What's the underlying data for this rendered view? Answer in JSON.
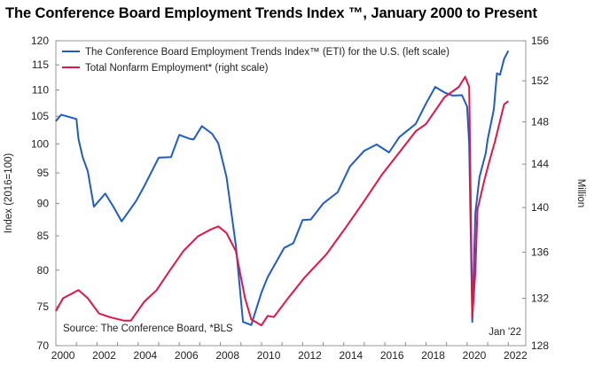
{
  "chart_data": {
    "type": "line",
    "title": "The Conference Board Employment Trends Index ™, January 2000 to Present",
    "ylabel_left": "Index (2016=100)",
    "ylabel_right": "Million",
    "xlim": [
      2000,
      2022.85
    ],
    "ylim_left": [
      70,
      120
    ],
    "ylim_right": [
      128,
      156
    ],
    "y_scale": "log",
    "x_ticks": [
      2000,
      2002,
      2004,
      2006,
      2008,
      2010,
      2012,
      2014,
      2016,
      2018,
      2020,
      2022
    ],
    "y_ticks_left": [
      70,
      75,
      80,
      85,
      90,
      95,
      100,
      105,
      110,
      115,
      120
    ],
    "y_ticks_right": [
      128,
      132,
      136,
      140,
      144,
      148,
      152,
      156
    ],
    "grid": false,
    "legend_placement": "top-left",
    "annotations": {
      "source": "Source: The Conference Board, *BLS",
      "latest": "Jan '22"
    },
    "series": [
      {
        "name": "The Conference Board Employment Trends Index™ (ETI) for the U.S. (left scale)",
        "axis": "left",
        "color": "#1f5cc4",
        "x": [
          2000.0,
          2000.26,
          2001.0,
          2001.1,
          2001.3,
          2001.55,
          2001.85,
          2002.4,
          2002.8,
          2003.2,
          2003.9,
          2004.3,
          2005.0,
          2005.6,
          2006.0,
          2006.5,
          2006.7,
          2007.1,
          2007.6,
          2007.9,
          2008.3,
          2008.75,
          2009.1,
          2009.2,
          2009.5,
          2010.0,
          2010.3,
          2011.1,
          2011.55,
          2012.0,
          2012.4,
          2013.0,
          2013.7,
          2014.3,
          2015.0,
          2015.6,
          2016.2,
          2016.7,
          2017.5,
          2018.0,
          2018.45,
          2018.9,
          2019.3,
          2019.75,
          2020.0,
          2020.1,
          2020.25,
          2020.4,
          2020.6,
          2020.9,
          2021.0,
          2021.3,
          2021.45,
          2021.6,
          2021.8,
          2022.0
        ],
        "y": [
          104.1,
          105.3,
          104.5,
          100.9,
          97.7,
          95.3,
          89.5,
          91.6,
          89.5,
          87.2,
          90.4,
          92.8,
          97.6,
          97.7,
          101.6,
          100.9,
          100.8,
          103.2,
          101.8,
          100.1,
          94.3,
          83.6,
          73.0,
          72.9,
          72.6,
          76.9,
          79.0,
          83.2,
          83.9,
          87.4,
          87.5,
          90.0,
          91.8,
          96.1,
          98.8,
          99.9,
          98.5,
          101.2,
          103.6,
          107.4,
          110.6,
          109.5,
          108.9,
          109.0,
          106.8,
          100.0,
          73.0,
          88.5,
          94.3,
          98.3,
          100.8,
          106.3,
          113.3,
          113.0,
          116.2,
          117.9
        ]
      },
      {
        "name": "Total Nonfarm Employment* (right scale)",
        "axis": "right",
        "color": "#e0154a",
        "x": [
          2000.0,
          2000.35,
          2001.1,
          2001.55,
          2002.1,
          2002.6,
          2003.3,
          2003.65,
          2004.3,
          2004.9,
          2005.5,
          2006.2,
          2006.9,
          2007.5,
          2007.9,
          2008.3,
          2008.75,
          2009.2,
          2009.5,
          2010.0,
          2010.3,
          2010.6,
          2011.25,
          2012.1,
          2013.15,
          2014.1,
          2015.0,
          2015.85,
          2016.7,
          2017.5,
          2018.0,
          2018.9,
          2019.6,
          2019.9,
          2020.1,
          2020.25,
          2020.4,
          2020.5,
          2020.85,
          2021.1,
          2021.35,
          2021.8,
          2022.0
        ],
        "y": [
          130.9,
          132.0,
          132.7,
          132.0,
          130.7,
          130.4,
          130.1,
          130.1,
          131.7,
          132.7,
          134.3,
          136.1,
          137.4,
          138.0,
          138.3,
          137.7,
          136.1,
          132.0,
          130.2,
          129.7,
          130.5,
          130.4,
          131.9,
          133.8,
          135.8,
          138.2,
          140.6,
          143.0,
          145.1,
          147.1,
          147.8,
          150.4,
          151.4,
          152.4,
          151.4,
          130.4,
          134.3,
          139.8,
          142.6,
          144.4,
          146.1,
          149.7,
          150.0
        ]
      }
    ]
  }
}
